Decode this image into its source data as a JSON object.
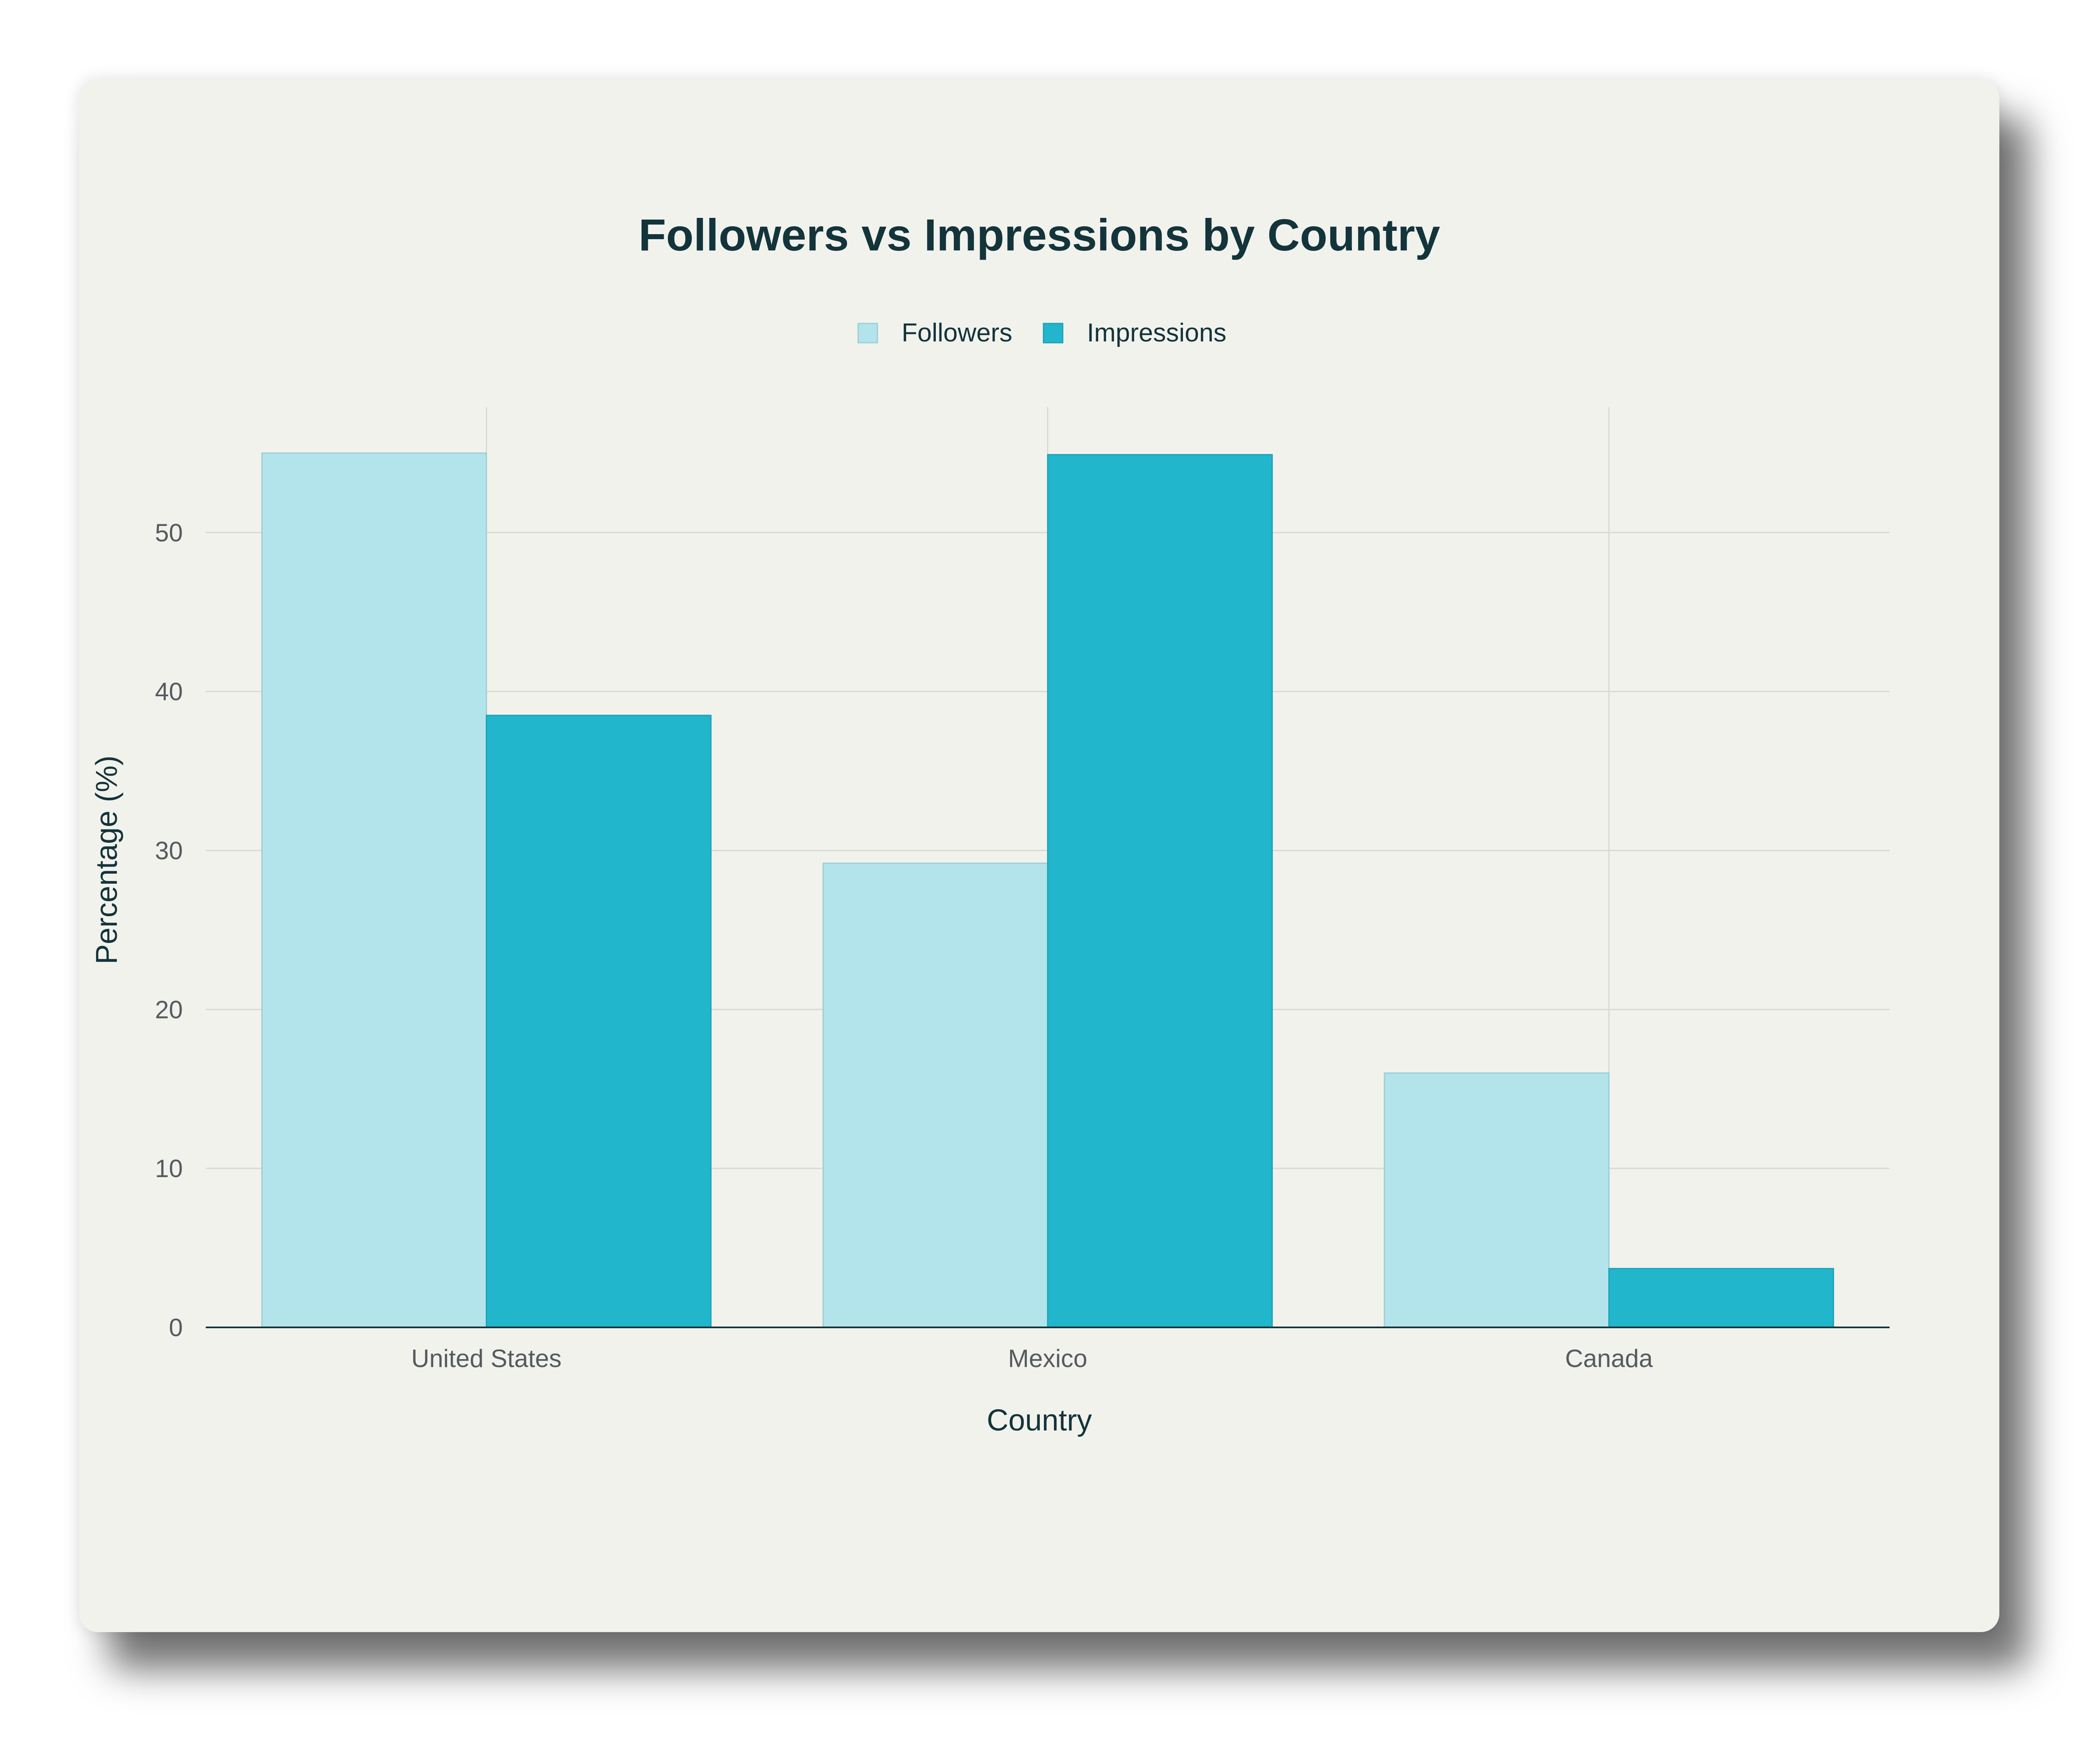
{
  "chart_data": {
    "type": "bar",
    "title": "Followers vs Impressions by Country",
    "xlabel": "Country",
    "ylabel": "Percentage (%)",
    "categories": [
      "United States",
      "Mexico",
      "Canada"
    ],
    "series": [
      {
        "name": "Followers",
        "values": [
          55.0,
          29.2,
          16.0
        ],
        "color": "#b3e4eb",
        "stroke": "#9ccfd6"
      },
      {
        "name": "Impressions",
        "values": [
          38.5,
          54.9,
          3.7
        ],
        "color": "#21b6cb",
        "stroke": "#1ca2b5"
      }
    ],
    "ylim": [
      0,
      57.9
    ],
    "yticks": [
      0,
      10,
      20,
      30,
      40,
      50
    ],
    "grid": true,
    "legend_position": "top-center",
    "colors": {
      "background": "#f2f2ed",
      "grid": "#d9d9d4",
      "axis": "#13343b"
    }
  }
}
